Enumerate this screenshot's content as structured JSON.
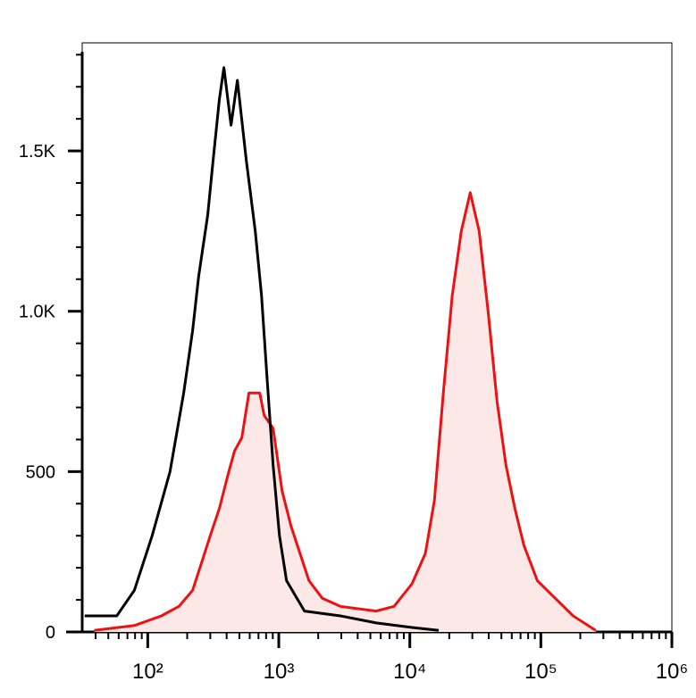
{
  "chart_data": {
    "type": "histogram-line",
    "xscale": "log",
    "xlim": [
      31.6,
      1000000
    ],
    "ylim": [
      0,
      1837
    ],
    "xticks": [
      {
        "value": 100,
        "label": "10²"
      },
      {
        "value": 1000,
        "label": "10³"
      },
      {
        "value": 10000,
        "label": "10⁴"
      },
      {
        "value": 100000,
        "label": "10⁵"
      },
      {
        "value": 1000000,
        "label": "10⁶"
      }
    ],
    "yticks": [
      0,
      500,
      {
        "value": 1000,
        "label": "1.0K"
      },
      {
        "value": 1500,
        "label": "1.5K"
      }
    ],
    "series": [
      {
        "color": "#000000",
        "x": [
          33,
          58,
          79,
          108,
          148,
          188,
          220,
          245,
          287,
          315,
          352,
          381,
          432,
          483,
          565,
          661,
          738,
          811,
          906,
          1012,
          1146,
          1570,
          2950,
          5540,
          10380,
          16600
        ],
        "values": [
          50,
          50,
          130,
          300,
          500,
          745,
          940,
          1110,
          1300,
          1470,
          1660,
          1760,
          1580,
          1720,
          1470,
          1250,
          1050,
          800,
          520,
          300,
          160,
          65,
          50,
          28,
          14,
          5
        ]
      },
      {
        "color": "#ee1111",
        "fill": "#fde8e8",
        "x": [
          39,
          79,
          127,
          173,
          220,
          257,
          300,
          352,
          412,
          460,
          522,
          592,
          715,
          774,
          906,
          1060,
          1240,
          1452,
          1700,
          2150,
          2950,
          5540,
          7590,
          10380,
          13150,
          15400,
          18030,
          21100,
          24700,
          28900,
          33800,
          39600,
          46300,
          54200,
          63400,
          74300,
          94000,
          128800,
          176500,
          262000
        ],
        "values": [
          5,
          20,
          50,
          80,
          130,
          215,
          300,
          385,
          495,
          565,
          605,
          745,
          745,
          675,
          635,
          440,
          330,
          245,
          160,
          105,
          80,
          65,
          80,
          150,
          245,
          410,
          745,
          1050,
          1250,
          1370,
          1250,
          1000,
          720,
          520,
          385,
          270,
          160,
          105,
          50,
          5
        ]
      }
    ]
  }
}
